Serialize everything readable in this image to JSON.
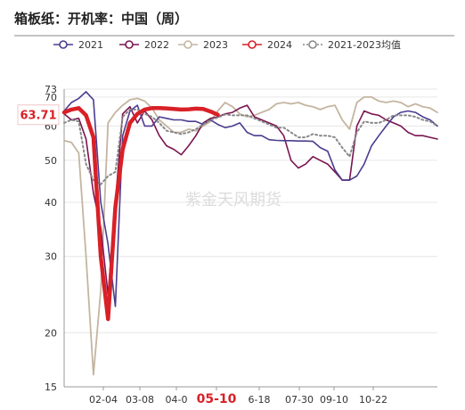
{
  "chart_data": {
    "type": "line",
    "title": "箱板纸：开机率：中国（周）",
    "watermark": "紫金天风期货",
    "x_ticks": [
      "02-04",
      "03-08",
      "04-0",
      "05-10",
      "6-18",
      "07-30",
      "09-10",
      "10-22"
    ],
    "highlight_x_tick": "05-10",
    "y_ticks": [
      15,
      20,
      30,
      40,
      50,
      60,
      70,
      73
    ],
    "ylim": [
      15,
      73
    ],
    "week_range": [
      1,
      52
    ],
    "last_value_label": "63.71",
    "colors": {
      "2021": "#4a3d8f",
      "2022": "#7a1550",
      "2023": "#c4b5a0",
      "2024": "#d92027",
      "avg": "#888888",
      "last_value": "#d92027"
    },
    "legend": [
      {
        "key": "2021",
        "label": "2021"
      },
      {
        "key": "2022",
        "label": "2022"
      },
      {
        "key": "2023",
        "label": "2023"
      },
      {
        "key": "2024",
        "label": "2024"
      },
      {
        "key": "avg",
        "label": "2021-2023均值"
      }
    ],
    "series": [
      {
        "name": "2021",
        "key": "2021",
        "x": [
          1,
          2,
          3,
          4,
          5,
          6,
          7,
          8,
          9,
          10,
          11,
          12,
          13,
          14,
          15,
          16,
          17,
          18,
          19,
          20,
          21,
          22,
          23,
          24,
          25,
          26,
          27,
          28,
          29,
          30,
          31,
          32,
          33,
          34,
          35,
          36,
          37,
          38,
          39,
          40,
          41,
          42,
          43,
          44,
          45,
          46,
          47,
          48,
          49,
          50,
          51,
          52
        ],
        "values": [
          65,
          68,
          69.5,
          72,
          69,
          40,
          32,
          23,
          57,
          65,
          67,
          60,
          60,
          63,
          62.5,
          62,
          62,
          61.5,
          61.5,
          60.5,
          62,
          60.5,
          59.5,
          60,
          61,
          58,
          57,
          57,
          55.8,
          55.6,
          55.5,
          55.5,
          55.4,
          55.4,
          55.3,
          53.5,
          52.5,
          47.5,
          45,
          45,
          46,
          49,
          54,
          57,
          60,
          63,
          64.5,
          65,
          64.5,
          63,
          62,
          60
        ]
      },
      {
        "name": "2022",
        "key": "2022",
        "x": [
          1,
          2,
          3,
          4,
          5,
          6,
          7,
          8,
          9,
          10,
          11,
          12,
          13,
          14,
          15,
          16,
          17,
          18,
          19,
          20,
          21,
          22,
          23,
          24,
          25,
          26,
          27,
          28,
          29,
          30,
          31,
          32,
          33,
          34,
          35,
          36,
          37,
          38,
          39,
          40,
          41,
          42,
          43,
          44,
          45,
          46,
          47,
          48,
          49,
          50,
          51,
          52
        ],
        "values": [
          64,
          62,
          62.5,
          56,
          42,
          35,
          24.5,
          40,
          64,
          66.5,
          61,
          65,
          62,
          57,
          54,
          53,
          51.5,
          54,
          57,
          61,
          62.5,
          63,
          64,
          64.5,
          66,
          67,
          63,
          62,
          61,
          60,
          57,
          50,
          48,
          49,
          51,
          50,
          49,
          47,
          45,
          45,
          60,
          65,
          64,
          63.5,
          62,
          61,
          60,
          58,
          57,
          57,
          56.5,
          56
        ]
      },
      {
        "name": "2023",
        "key": "2023",
        "x": [
          1,
          2,
          3,
          4,
          5,
          6,
          7,
          8,
          9,
          10,
          11,
          12,
          13,
          14,
          15,
          16,
          17,
          18,
          19,
          20,
          21,
          22,
          23,
          24,
          25,
          26,
          27,
          28,
          29,
          30,
          31,
          32,
          33,
          34,
          35,
          36,
          37,
          38,
          39,
          40,
          41,
          42,
          43,
          44,
          45,
          46,
          47,
          48,
          49,
          50,
          51,
          52
        ],
        "values": [
          55.5,
          55,
          52,
          30,
          16,
          25,
          61,
          64.5,
          67,
          69,
          69.5,
          68.5,
          66,
          62,
          60,
          58,
          58,
          59,
          58.5,
          60,
          61.5,
          65,
          68,
          66.5,
          64,
          63,
          63.5,
          64.5,
          65.5,
          67.5,
          68,
          67.5,
          68,
          67,
          66.5,
          65.5,
          66.5,
          67,
          62,
          59,
          68,
          70,
          70,
          68.5,
          68,
          68.5,
          68,
          66.5,
          67.5,
          66.5,
          66,
          64.5
        ]
      },
      {
        "name": "2024",
        "key": "2024",
        "x": [
          1,
          2,
          3,
          4,
          5,
          6,
          7,
          8,
          9,
          10,
          11,
          12,
          13,
          14,
          15,
          16,
          17,
          18,
          19,
          20,
          21,
          22
        ],
        "values": [
          64.5,
          65.5,
          66,
          63.5,
          56.5,
          30,
          21.5,
          39,
          53,
          61,
          64,
          65.5,
          66,
          66,
          65.9,
          65.7,
          65.5,
          65.6,
          65.8,
          65.7,
          64.8,
          63.71
        ]
      },
      {
        "name": "2021-2023均值",
        "key": "avg",
        "x": [
          1,
          2,
          3,
          4,
          5,
          6,
          7,
          8,
          9,
          10,
          11,
          12,
          13,
          14,
          15,
          16,
          17,
          18,
          19,
          20,
          21,
          22,
          23,
          24,
          25,
          26,
          27,
          28,
          29,
          30,
          31,
          32,
          33,
          34,
          35,
          36,
          37,
          38,
          39,
          40,
          41,
          42,
          43,
          44,
          45,
          46,
          47,
          48,
          49,
          50,
          51,
          52
        ],
        "values": [
          61,
          62,
          61.5,
          49,
          45,
          44,
          46,
          47,
          63,
          65.5,
          65.5,
          64,
          63,
          61,
          58.5,
          58,
          57.5,
          58,
          59,
          60.5,
          62,
          62.8,
          63.8,
          63.5,
          63.5,
          63.5,
          62.5,
          61.5,
          60.5,
          59.5,
          59.5,
          58,
          56.5,
          56.5,
          57.5,
          57,
          57,
          56.5,
          53.5,
          51,
          58,
          61.5,
          61,
          61,
          62,
          63.5,
          63.5,
          63.5,
          63,
          62,
          61.5,
          60
        ]
      }
    ]
  }
}
